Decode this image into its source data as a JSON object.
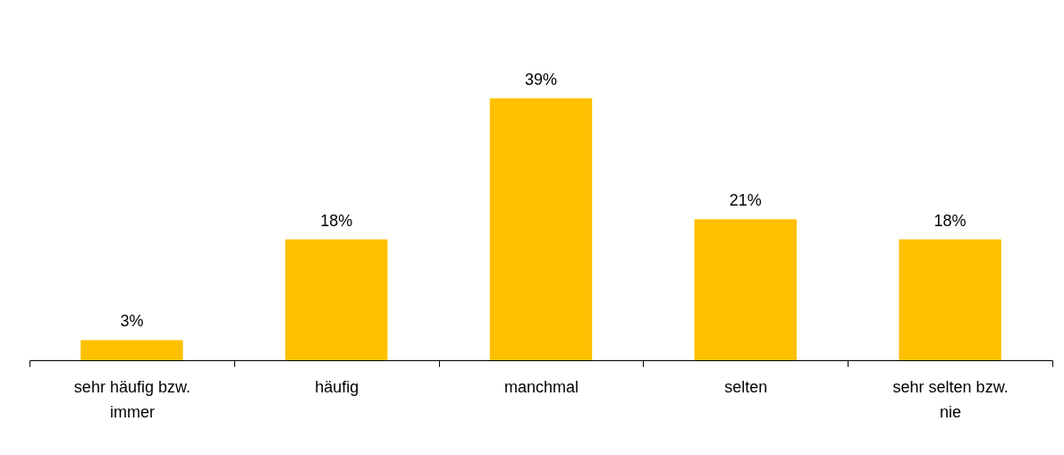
{
  "chart_data": {
    "type": "bar",
    "categories": [
      "sehr häufig bzw. immer",
      "häufig",
      "manchmal",
      "selten",
      "sehr selten bzw. nie"
    ],
    "values": [
      3,
      18,
      39,
      21,
      18
    ],
    "value_labels": [
      "3%",
      "18%",
      "39%",
      "21%",
      "18%"
    ],
    "color": "#ffc000",
    "grid": false
  }
}
